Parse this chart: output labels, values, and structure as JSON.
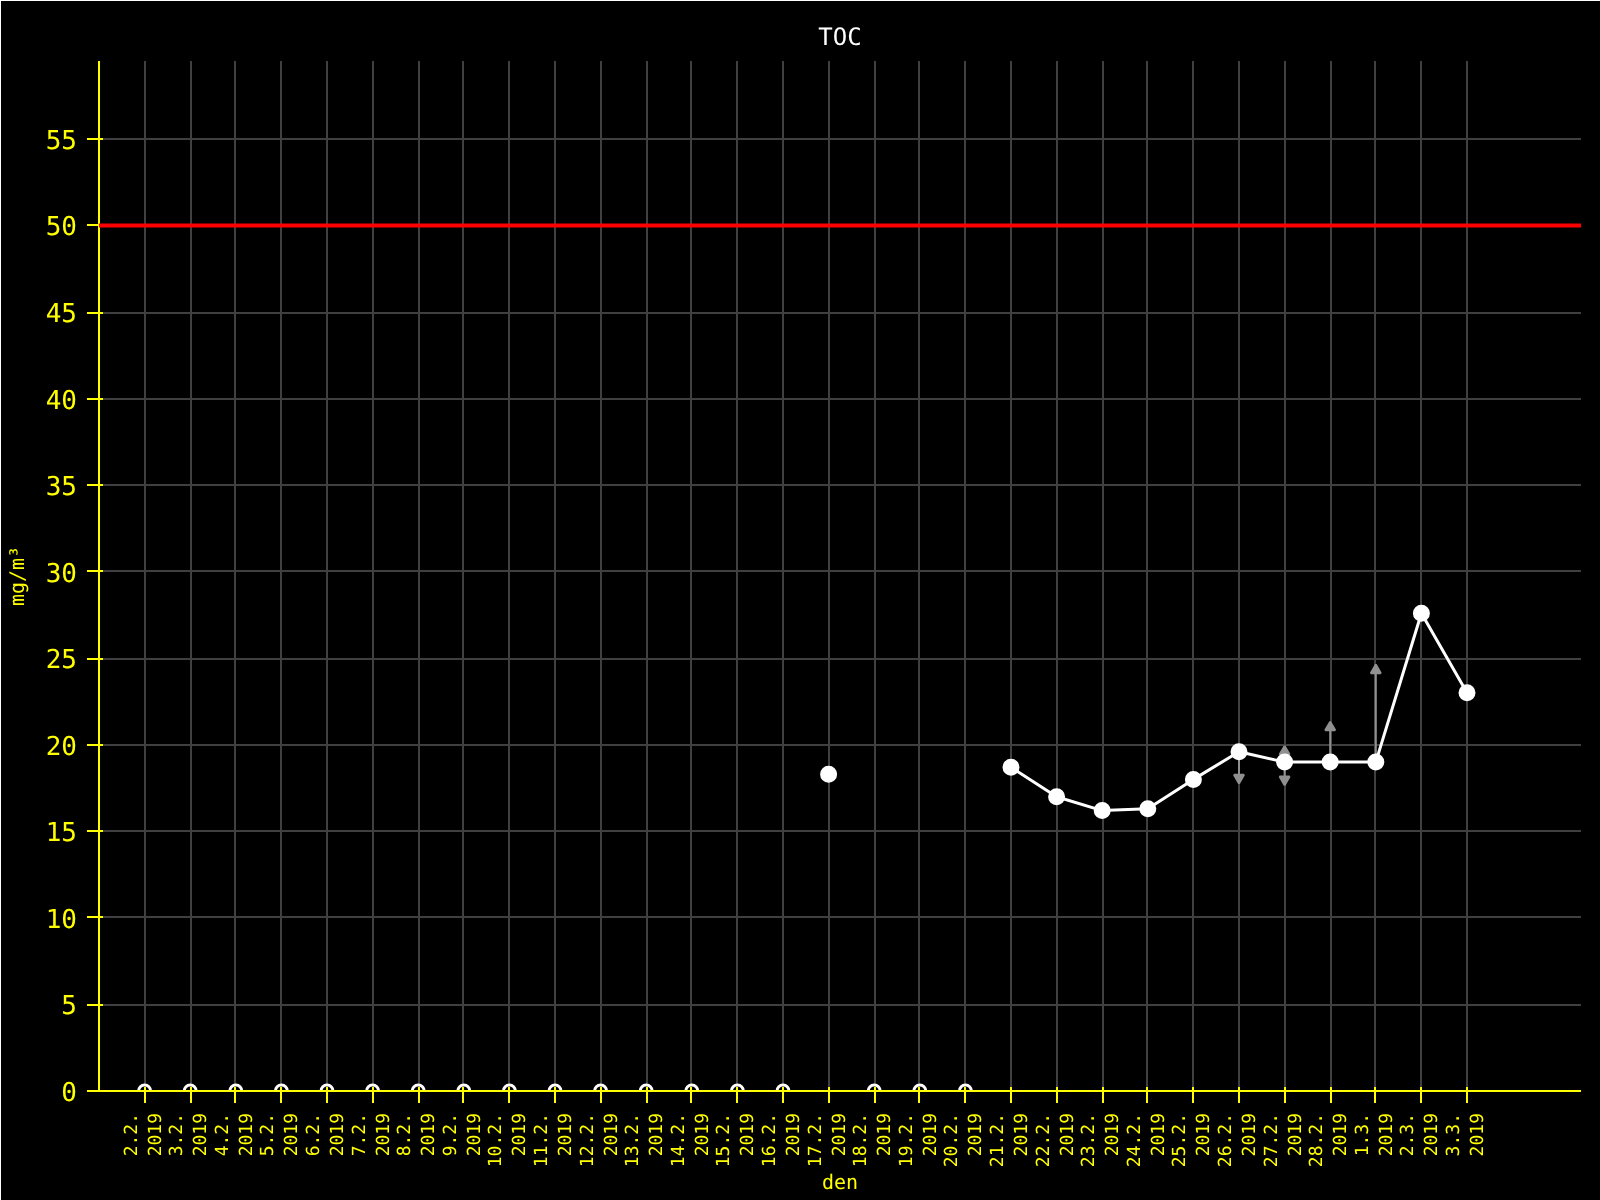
{
  "chart_data": {
    "type": "line",
    "title": "TOC",
    "xlabel": "den",
    "ylabel": "mg/m³",
    "categories": [
      "2.2.\n2019",
      "3.2.\n2019",
      "4.2.\n2019",
      "5.2.\n2019",
      "6.2.\n2019",
      "7.2.\n2019",
      "8.2.\n2019",
      "9.2.\n2019",
      "10.2.\n2019",
      "11.2.\n2019",
      "12.2.\n2019",
      "13.2.\n2019",
      "14.2.\n2019",
      "15.2.\n2019",
      "16.2.\n2019",
      "17.2.\n2019",
      "18.2.\n2019",
      "19.2.\n2019",
      "20.2.\n2019",
      "21.2.\n2019",
      "22.2.\n2019",
      "23.2.\n2019",
      "24.2.\n2019",
      "25.2.\n2019",
      "26.2.\n2019",
      "27.2.\n2019",
      "28.2.\n2019",
      "1.3.\n2019",
      "2.3.\n2019",
      "3.3.\n2019"
    ],
    "series": [
      {
        "color": "#ffffff",
        "marker": "circle",
        "values": [
          null,
          null,
          null,
          null,
          null,
          null,
          null,
          null,
          null,
          null,
          null,
          null,
          null,
          null,
          null,
          18.3,
          null,
          null,
          null,
          18.7,
          17.0,
          16.2,
          16.3,
          18.0,
          19.6,
          19.0,
          19.0,
          19.0,
          27.6,
          23.0
        ],
        "errors": [
          null,
          null,
          null,
          null,
          null,
          null,
          null,
          null,
          null,
          null,
          null,
          null,
          null,
          null,
          null,
          null,
          null,
          null,
          null,
          null,
          null,
          null,
          null,
          null,
          [
            18.1,
            19.6
          ],
          [
            18.0,
            19.6
          ],
          [
            19.0,
            21.0
          ],
          [
            19.0,
            24.3
          ],
          null,
          null
        ]
      },
      {
        "type": "scatter",
        "color": "#ffffff",
        "marker": "circle",
        "values": [
          0,
          0,
          0,
          0,
          0,
          0,
          0,
          0,
          0,
          0,
          0,
          0,
          0,
          0,
          0,
          null,
          0,
          0,
          0,
          null,
          null,
          null,
          null,
          null,
          null,
          null,
          null,
          null,
          null,
          null
        ]
      }
    ],
    "ylim": [
      0,
      59.5
    ],
    "yticks": [
      0,
      5,
      10,
      15,
      20,
      25,
      30,
      35,
      40,
      45,
      50,
      55
    ],
    "ref_lines": [
      {
        "axis": "y",
        "value": 50,
        "color": "#ff0000"
      }
    ],
    "grid": true
  }
}
